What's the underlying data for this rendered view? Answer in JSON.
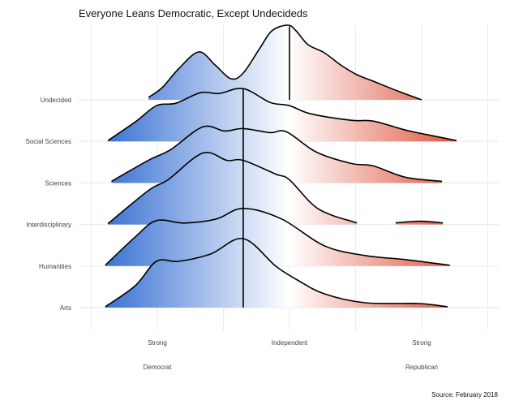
{
  "chart_data": {
    "type": "ridgeline-density",
    "title": "Everyone Leans Democratic, Except Undecideds",
    "caption": "Source: February 2018",
    "xlabel": "",
    "ylabel": "",
    "xlim": [
      -4.5,
      4.5
    ],
    "x_gridlines": [
      -4.5,
      -3,
      -1.5,
      0,
      1.5,
      3,
      4.5
    ],
    "x_ticks": [
      {
        "value": -3,
        "line1": "Strong",
        "line2": "Democrat"
      },
      {
        "value": 0,
        "line1": "Independent",
        "line2": ""
      },
      {
        "value": 3,
        "line1": "Strong",
        "line2": "Republican"
      }
    ],
    "colors": {
      "democrat": "#3a72d3",
      "neutral": "#ffffff",
      "republican": "#e0553f",
      "grid": "#ebebeb",
      "line": "#000000"
    },
    "series": [
      {
        "name": "Undecided",
        "median": 0,
        "segments": [
          [
            [
              -3.2,
              0.03
            ],
            [
              -2.89,
              0.15
            ],
            [
              -2.52,
              0.38
            ],
            [
              -2.06,
              0.59
            ],
            [
              -1.69,
              0.43
            ],
            [
              -1.33,
              0.26
            ],
            [
              -1.05,
              0.33
            ],
            [
              -0.68,
              0.63
            ],
            [
              -0.4,
              0.85
            ],
            [
              -0.04,
              0.92
            ],
            [
              0.15,
              0.85
            ],
            [
              0.42,
              0.68
            ],
            [
              0.79,
              0.58
            ],
            [
              1.16,
              0.43
            ],
            [
              1.53,
              0.31
            ],
            [
              1.9,
              0.23
            ],
            [
              2.45,
              0.11
            ],
            [
              3.0,
              0.0
            ]
          ]
        ]
      },
      {
        "name": "Social Sciences",
        "median": -1.05,
        "segments": [
          [
            [
              -4.12,
              0.01
            ],
            [
              -3.5,
              0.24
            ],
            [
              -3.02,
              0.44
            ],
            [
              -2.58,
              0.47
            ],
            [
              -2.02,
              0.6
            ],
            [
              -1.6,
              0.59
            ],
            [
              -1.05,
              0.65
            ],
            [
              -0.44,
              0.48
            ],
            [
              0,
              0.44
            ],
            [
              0.48,
              0.34
            ],
            [
              1.4,
              0.26
            ],
            [
              1.9,
              0.25
            ],
            [
              2.63,
              0.14
            ],
            [
              3.24,
              0.07
            ],
            [
              3.79,
              0.01
            ]
          ]
        ]
      },
      {
        "name": "Sciences",
        "median": -1.05,
        "segments": [
          [
            [
              -4.04,
              0.02
            ],
            [
              -3.2,
              0.28
            ],
            [
              -2.7,
              0.41
            ],
            [
              -1.97,
              0.69
            ],
            [
              -1.47,
              0.64
            ],
            [
              -1.05,
              0.67
            ],
            [
              -0.44,
              0.62
            ],
            [
              -0.07,
              0.63
            ],
            [
              0.61,
              0.38
            ],
            [
              1.4,
              0.24
            ],
            [
              1.9,
              0.21
            ],
            [
              2.63,
              0.07
            ],
            [
              3.46,
              0.02
            ]
          ]
        ]
      },
      {
        "name": "Interdisciplinary",
        "median": -1.05,
        "segments": [
          [
            [
              -4.12,
              0.01
            ],
            [
              -3.2,
              0.42
            ],
            [
              -2.76,
              0.55
            ],
            [
              -1.97,
              0.88
            ],
            [
              -1.42,
              0.79
            ],
            [
              -1.05,
              0.79
            ],
            [
              -0.31,
              0.62
            ],
            [
              0,
              0.55
            ],
            [
              0.66,
              0.19
            ],
            [
              1.53,
              0.02
            ]
          ],
          [
            [
              2.41,
              0.02
            ],
            [
              2.96,
              0.04
            ],
            [
              3.48,
              0.02
            ]
          ]
        ]
      },
      {
        "name": "Humanities",
        "median": -1.05,
        "segments": [
          [
            [
              -4.18,
              0.01
            ],
            [
              -3.5,
              0.36
            ],
            [
              -3.02,
              0.56
            ],
            [
              -2.39,
              0.53
            ],
            [
              -1.66,
              0.58
            ],
            [
              -1.05,
              0.71
            ],
            [
              -0.18,
              0.58
            ],
            [
              0.79,
              0.25
            ],
            [
              1.71,
              0.13
            ],
            [
              2.63,
              0.08
            ],
            [
              3.64,
              0.01
            ]
          ]
        ]
      },
      {
        "name": "Arts",
        "median": -1.05,
        "segments": [
          [
            [
              -4.18,
              0.01
            ],
            [
              -3.5,
              0.27
            ],
            [
              -3.02,
              0.57
            ],
            [
              -2.52,
              0.57
            ],
            [
              -1.79,
              0.66
            ],
            [
              -1.05,
              0.85
            ],
            [
              -0.31,
              0.51
            ],
            [
              0.18,
              0.34
            ],
            [
              0.79,
              0.17
            ],
            [
              1.71,
              0.06
            ],
            [
              2.94,
              0.05
            ],
            [
              3.59,
              0.01
            ]
          ]
        ]
      }
    ]
  }
}
